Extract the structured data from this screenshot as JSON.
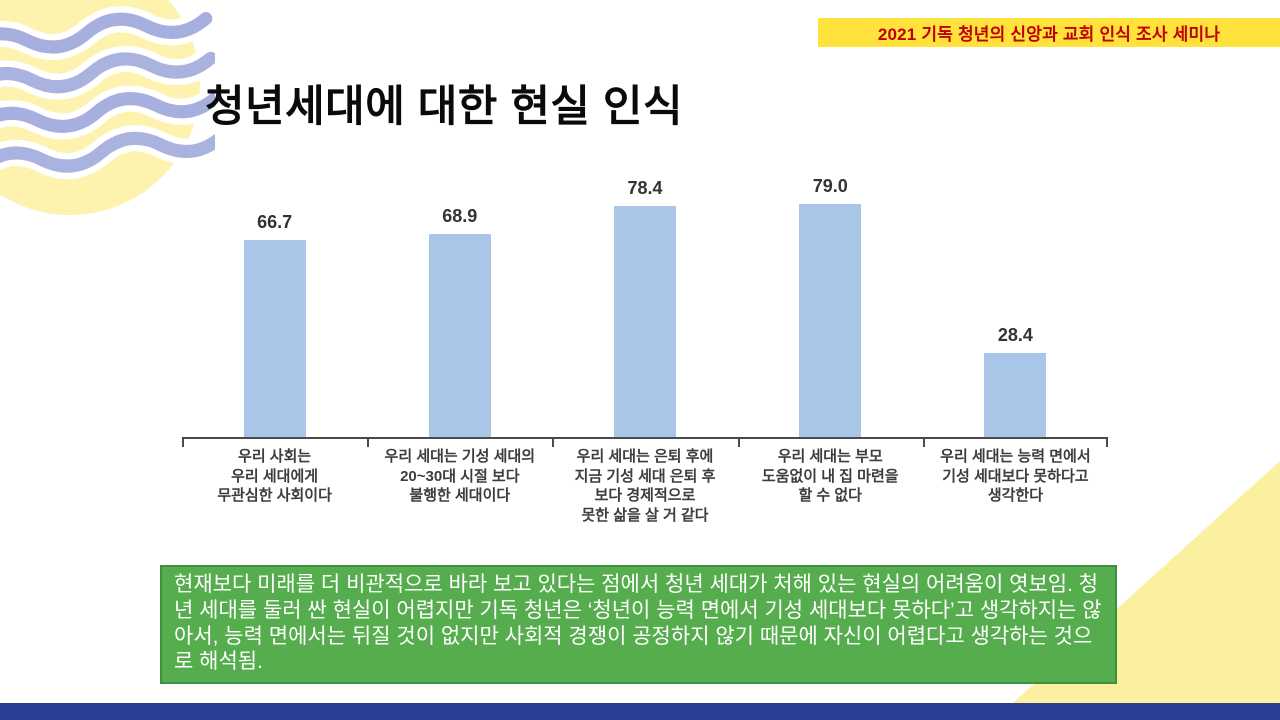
{
  "banner": {
    "text": "2021 기독 청년의 신앙과 교회 인식 조사 세미나"
  },
  "slide": {
    "title": "청년세대에 대한 현실 인식"
  },
  "chart_data": {
    "type": "bar",
    "title": "",
    "xlabel": "",
    "ylabel": "",
    "ylim": [
      0,
      100
    ],
    "grid": false,
    "legend": "none",
    "bar_color": "#a9c5e8",
    "categories": [
      "우리 사회는\n우리 세대에게\n무관심한 사회이다",
      "우리 세대는 기성 세대의\n20~30대 시절 보다\n불행한 세대이다",
      "우리 세대는 은퇴 후에\n지금 기성 세대 은퇴 후\n보다 경제적으로\n못한 삶을 살 거 같다",
      "우리 세대는 부모\n도움없이 내 집 마련을\n할 수 없다",
      "우리 세대는 능력 면에서\n기성 세대보다 못하다고\n생각한다"
    ],
    "values": [
      66.7,
      68.9,
      78.4,
      79.0,
      28.4
    ],
    "value_labels": [
      "66.7",
      "68.9",
      "78.4",
      "79.0",
      "28.4"
    ]
  },
  "note": {
    "text": "현재보다 미래를 더 비관적으로 바라 보고 있다는 점에서 청년 세대가 처해 있는 현실의 어려움이 엿보임. 청년 세대를 둘러 싼 현실이 어렵지만 기독 청년은 ‘청년이 능력 면에서 기성 세대보다 못하다’고 생각하지는 않아서, 능력 면에서는 뒤질 것이 없지만 사회적 경쟁이 공정하지 않기 때문에 자신이 어렵다고 생각하는 것으로 해석됨."
  },
  "colors": {
    "bar": "#a9c5e8",
    "banner_bg": "#ffe23c",
    "banner_text": "#c00000",
    "note_bg": "#56ad4e",
    "note_border": "#3f8f3f",
    "note_text": "#ffffff",
    "footer_bar": "#2c3e93",
    "deco_circle": "#fdf2ae",
    "deco_wave": "#a6afdd"
  }
}
